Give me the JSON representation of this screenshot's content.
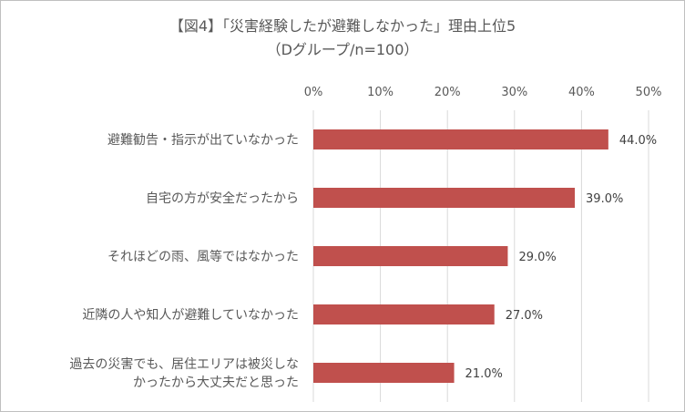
{
  "title": "【図4】「災害経験したが避難しなかった」理由上位5",
  "subtitle": "（Dグループ/n=100）",
  "colors": {
    "bar": "#c0504d",
    "grid": "#d9d9d9",
    "text": "#595959"
  },
  "chart_data": {
    "type": "bar",
    "orientation": "horizontal",
    "title": "【図4】「災害経験したが避難しなかった」理由上位5",
    "subtitle": "（Dグループ/n=100）",
    "xlim": [
      0,
      50
    ],
    "xticks": [
      0,
      10,
      20,
      30,
      40,
      50
    ],
    "xtick_labels": [
      "0%",
      "10%",
      "20%",
      "30%",
      "40%",
      "50%"
    ],
    "x_axis_position": "top",
    "grid": true,
    "categories": [
      "避難勧告・指示が出ていなかった",
      "自宅の方が安全だったから",
      "それほどの雨、風等ではなかった",
      "近隣の人や知人が避難していなかった",
      "過去の災害でも、居住エリアは被災しなかったから大丈夫だと思った"
    ],
    "category_lines": [
      [
        "避難勧告・指示が出ていなかった"
      ],
      [
        "自宅の方が安全だったから"
      ],
      [
        "それほどの雨、風等ではなかった"
      ],
      [
        "近隣の人や知人が避難していなかった"
      ],
      [
        "過去の災害でも、居住エリアは被災しな",
        "かったから大丈夫だと思った"
      ]
    ],
    "values": [
      44.0,
      39.0,
      29.0,
      27.0,
      21.0
    ],
    "data_labels": [
      "44.0%",
      "39.0%",
      "29.0%",
      "27.0%",
      "21.0%"
    ]
  }
}
